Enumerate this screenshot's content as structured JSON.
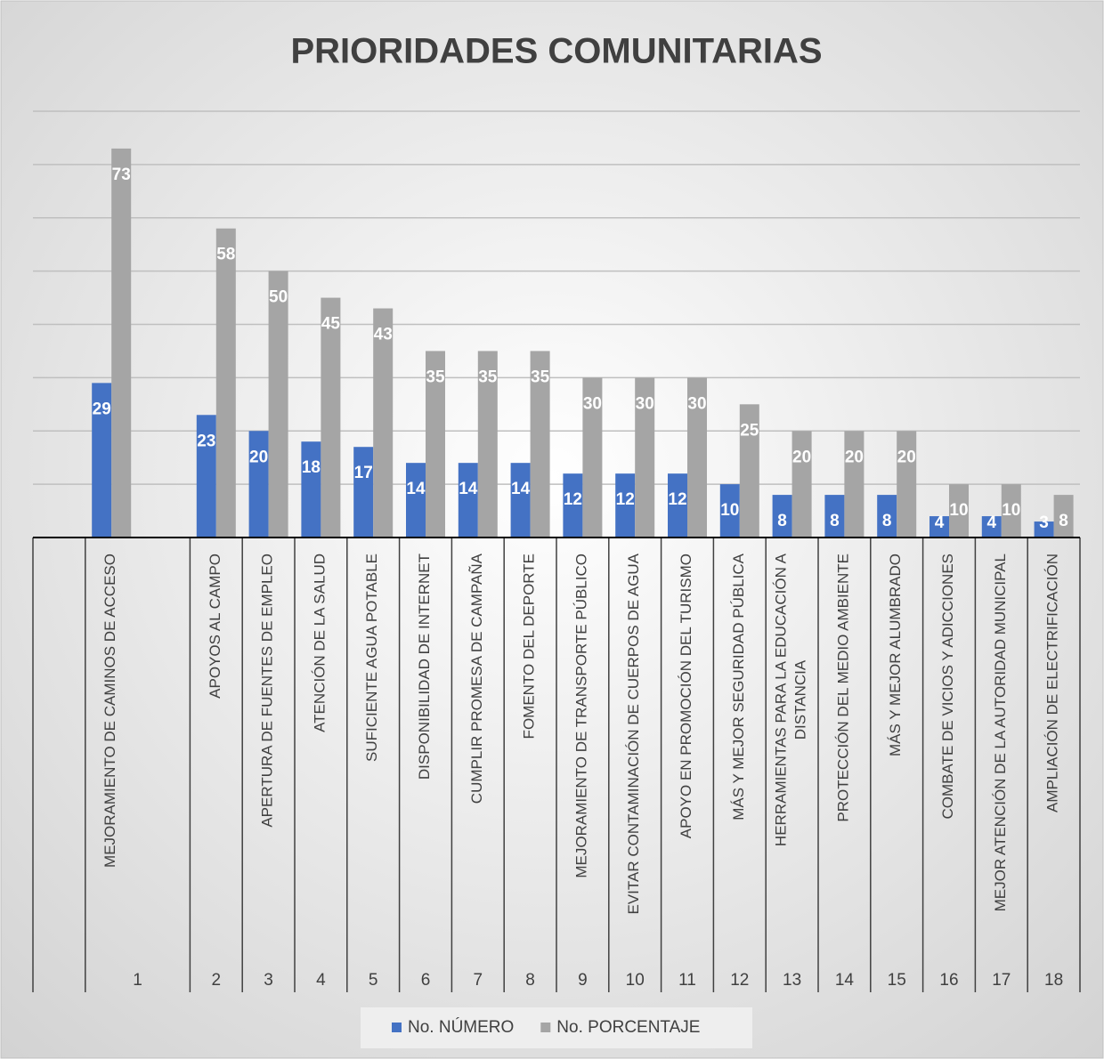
{
  "chart_data": {
    "type": "bar",
    "title": "PRIORIDADES COMUNITARIAS",
    "categories": [
      "MEJORAMIENTO DE CAMINOS DE ACCESO",
      "APOYOS AL CAMPO",
      "APERTURA DE FUENTES DE EMPLEO",
      "ATENCIÓN DE LA SALUD",
      "SUFICIENTE AGUA POTABLE",
      "DISPONIBILIDAD DE INTERNET",
      "CUMPLIR PROMESA DE CAMPAÑA",
      "FOMENTO DEL DEPORTE",
      "MEJORAMIENTO DE TRANSPORTE PÚBLICO",
      "EVITAR CONTAMINACIÓN DE CUERPOS DE AGUA",
      "APOYO EN PROMOCIÓN DEL TURISMO",
      "MÁS Y MEJOR SEGURIDAD PÚBLICA",
      "HERRAMIENTAS PARA LA EDUCACIÓN A DISTANCIA",
      "PROTECCIÓN DEL MEDIO AMBIENTE",
      "MÁS Y MEJOR ALUMBRADO",
      "COMBATE DE VICIOS Y ADICCIONES",
      "MEJOR ATENCIÓN DE LA AUTORIDAD MUNICIPAL",
      "AMPLIACIÓN DE ELECTRIFICACIÓN"
    ],
    "groups": [
      1,
      2,
      3,
      4,
      5,
      6,
      7,
      8,
      9,
      10,
      11,
      12,
      13,
      14,
      15,
      16,
      17,
      18
    ],
    "series": [
      {
        "name": "No. NÚMERO",
        "color": "#4472c4",
        "values": [
          29,
          23,
          20,
          18,
          17,
          14,
          14,
          14,
          12,
          12,
          12,
          10,
          8,
          8,
          8,
          4,
          4,
          3
        ]
      },
      {
        "name": "No. PORCENTAJE",
        "color": "#a5a5a5",
        "values": [
          73,
          58,
          50,
          45,
          43,
          35,
          35,
          35,
          30,
          30,
          30,
          25,
          20,
          20,
          20,
          10,
          10,
          8
        ]
      }
    ],
    "ylim": [
      0,
      80
    ],
    "yticks": [
      0,
      10,
      20,
      30,
      40,
      50,
      60,
      70,
      80
    ],
    "grid": true,
    "legend": "bottom"
  }
}
